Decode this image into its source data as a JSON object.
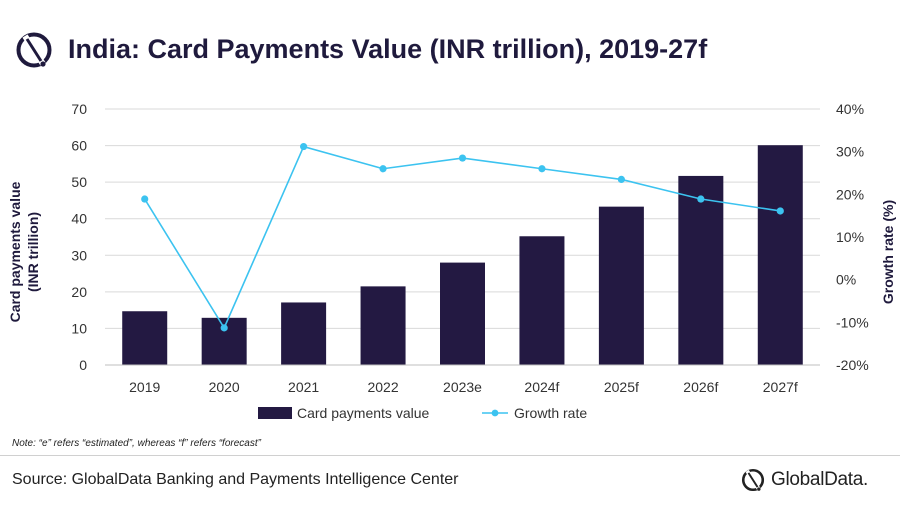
{
  "title": "India: Card Payments Value (INR trillion), 2019-27f",
  "note": "Note: “e” refers “estimated”, whereas “f” refers “forecast”",
  "source": "Source: GlobalData Banking and Payments Intelligence Center",
  "brand": "GlobalData.",
  "colors": {
    "bar": "#231942",
    "line": "#3cc3f0",
    "title": "#1f1a3d"
  },
  "chart_data": {
    "type": "bar",
    "categories": [
      "2019",
      "2020",
      "2021",
      "2022",
      "2023e",
      "2024f",
      "2025f",
      "2026f",
      "2027f"
    ],
    "series": [
      {
        "name": "Card payments value",
        "type": "bar",
        "axis": "left",
        "values": [
          14.7,
          12.9,
          17.1,
          21.5,
          28.0,
          35.2,
          43.3,
          51.7,
          60.1
        ]
      },
      {
        "name": "Growth rate",
        "type": "line",
        "axis": "right",
        "values": [
          18.9,
          -11.3,
          31.2,
          26.0,
          28.5,
          26.0,
          23.5,
          18.9,
          16.1
        ]
      }
    ],
    "ylabel": "Card payments value\n(INR trillion)",
    "ylabel_lines": [
      "Card payments value",
      "(INR trillion)"
    ],
    "y2label": "Growth rate (%)",
    "ylim": [
      0,
      70
    ],
    "yticks": [
      "0",
      "10",
      "20",
      "30",
      "40",
      "50",
      "60",
      "70"
    ],
    "y2lim": [
      -20,
      40
    ],
    "y2ticks": [
      "-20%",
      "-10%",
      "0%",
      "10%",
      "20%",
      "30%",
      "40%"
    ],
    "grid": true,
    "legend_position": "bottom"
  }
}
